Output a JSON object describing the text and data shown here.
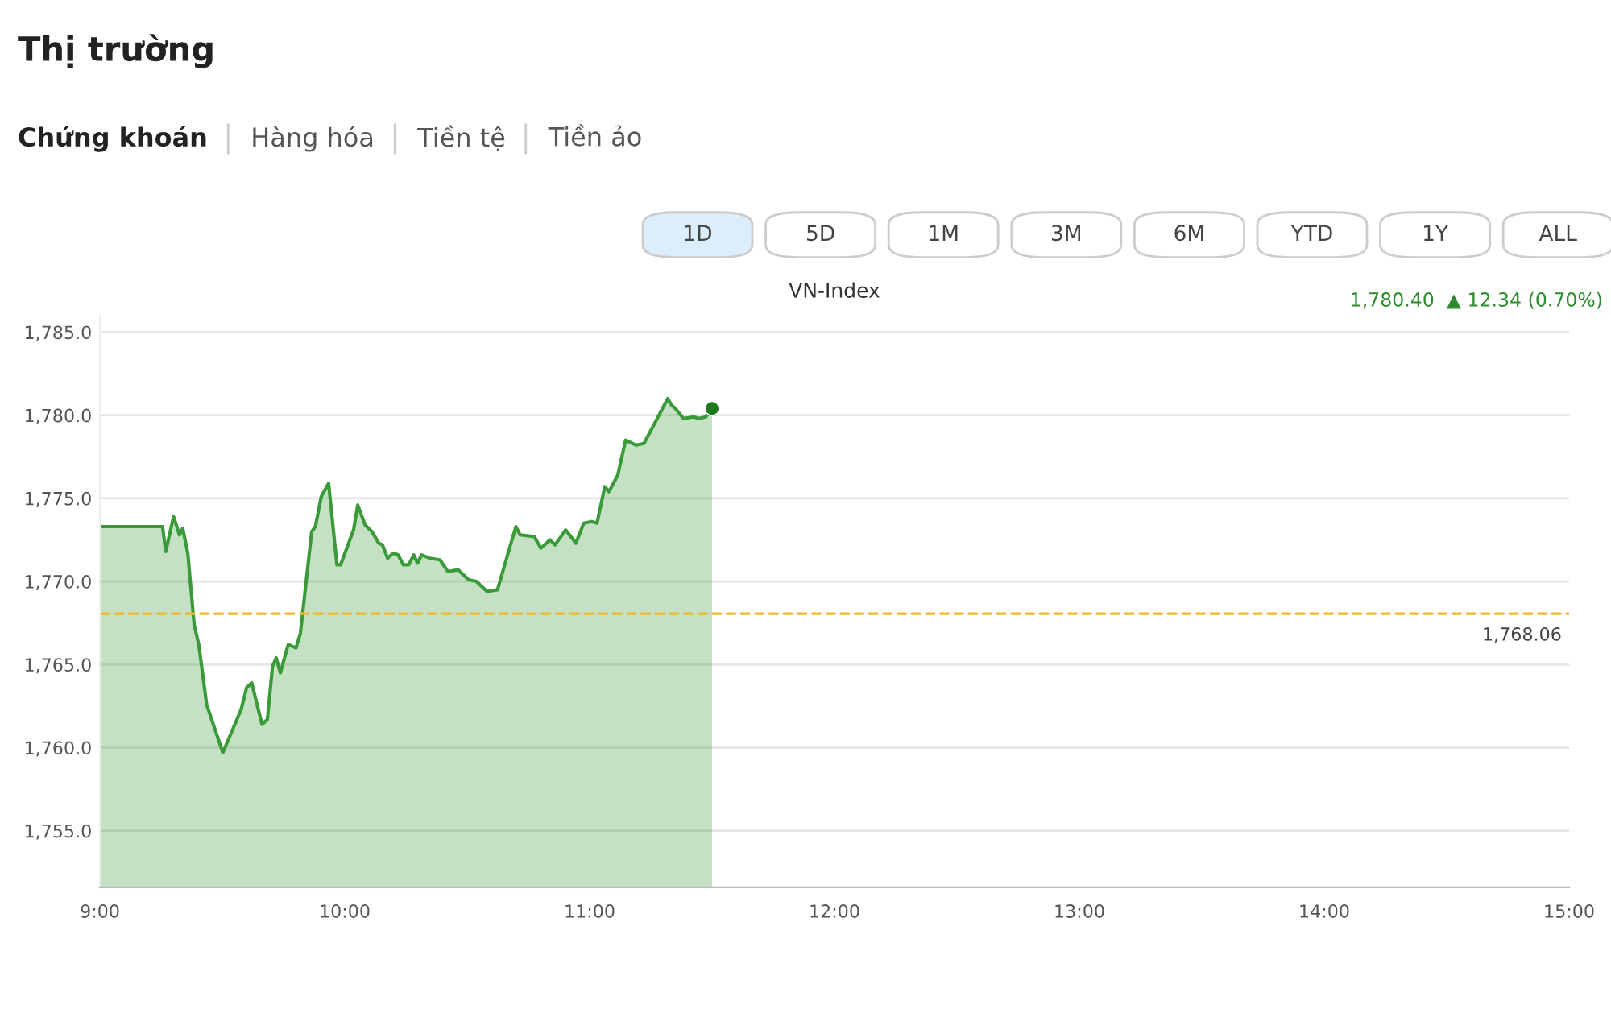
{
  "chart_data": {
    "type": "area",
    "title": "VN-Index",
    "annotations": [
      "Thị trường",
      "Chứng khoán",
      "Hàng hóa",
      "Tiền tệ",
      "Tiền ảo",
      "1D",
      "5D",
      "1M",
      "3M",
      "6M",
      "YTD",
      "1Y",
      "ALL",
      "1,780.40  ▲ 12.34 (0.70%)"
    ],
    "series": [
      {
        "color": "#3a9a3a",
        "x": [
          9.0,
          9.256,
          9.269,
          9.301,
          9.325,
          9.338,
          9.359,
          9.385,
          9.404,
          9.436,
          9.502,
          9.577,
          9.599,
          9.62,
          9.635,
          9.662,
          9.684,
          9.705,
          9.72,
          9.737,
          9.769,
          9.801,
          9.819,
          9.865,
          9.88,
          9.904,
          9.934,
          9.968,
          9.983,
          10.026,
          10.036,
          10.053,
          10.083,
          10.111,
          10.139,
          10.154,
          10.175,
          10.197,
          10.218,
          10.239,
          10.261,
          10.282,
          10.297,
          10.314,
          10.346,
          10.389,
          10.421,
          10.463,
          10.506,
          10.538,
          10.581,
          10.624,
          10.667,
          10.699,
          10.716,
          10.774,
          10.801,
          10.838,
          10.859,
          10.902,
          10.944,
          10.976,
          11.008,
          11.03,
          11.062,
          11.079,
          11.115,
          11.147,
          11.19,
          11.222,
          11.276,
          11.319,
          11.335,
          11.351,
          11.383,
          11.425,
          11.447,
          11.474,
          11.5
        ],
        "values": [
          1773.3,
          1773.3,
          1771.8,
          1773.9,
          1772.8,
          1773.2,
          1771.7,
          1767.4,
          1766.2,
          1762.6,
          1759.7,
          1762.3,
          1763.6,
          1763.9,
          1763.0,
          1761.4,
          1761.7,
          1764.9,
          1765.4,
          1764.5,
          1766.2,
          1766.0,
          1766.9,
          1773.0,
          1773.3,
          1775.1,
          1775.9,
          1771.0,
          1771.0,
          1772.7,
          1773.1,
          1774.6,
          1773.4,
          1773.0,
          1772.3,
          1772.2,
          1771.4,
          1771.7,
          1771.6,
          1771.0,
          1771.0,
          1771.6,
          1771.1,
          1771.6,
          1771.4,
          1771.3,
          1770.6,
          1770.7,
          1770.1,
          1770.0,
          1769.4,
          1769.5,
          1771.7,
          1773.3,
          1772.8,
          1772.7,
          1772.0,
          1772.5,
          1772.2,
          1773.1,
          1772.3,
          1773.5,
          1773.6,
          1773.5,
          1775.7,
          1775.4,
          1776.4,
          1778.5,
          1778.2,
          1778.3,
          1779.8,
          1781.0,
          1780.6,
          1780.4,
          1779.8,
          1779.9,
          1779.8,
          1779.9,
          1780.4
        ]
      },
      {
        "type": "scatter",
        "color": "#1e7a1e",
        "marker": "circle",
        "x": [
          11.5
        ],
        "values": [
          1780.4
        ]
      }
    ],
    "ref_lines": [
      {
        "axis": "y",
        "value": 1768.06,
        "label": "1,768.06",
        "color": "#f0b830",
        "line_style": "dashed"
      }
    ],
    "xlim": [
      9,
      15
    ],
    "xticks": [
      {
        "value": 9,
        "label": "9:00"
      },
      {
        "value": 10,
        "label": "10:00"
      },
      {
        "value": 11,
        "label": "11:00"
      },
      {
        "value": 12,
        "label": "12:00"
      },
      {
        "value": 13,
        "label": "13:00"
      },
      {
        "value": 14,
        "label": "14:00"
      },
      {
        "value": 15,
        "label": "15:00"
      }
    ],
    "ylim": [
      1751.6,
      1786
    ],
    "yticks": [
      {
        "value": 1755,
        "label": "1,755.0"
      },
      {
        "value": 1760,
        "label": "1,760.0"
      },
      {
        "value": 1765,
        "label": "1,765.0"
      },
      {
        "value": 1770,
        "label": "1,770.0"
      },
      {
        "value": 1775,
        "label": "1,775.0"
      },
      {
        "value": 1780,
        "label": "1,780.0"
      },
      {
        "value": 1785,
        "label": "1,785.0"
      }
    ],
    "grid": "y"
  }
}
